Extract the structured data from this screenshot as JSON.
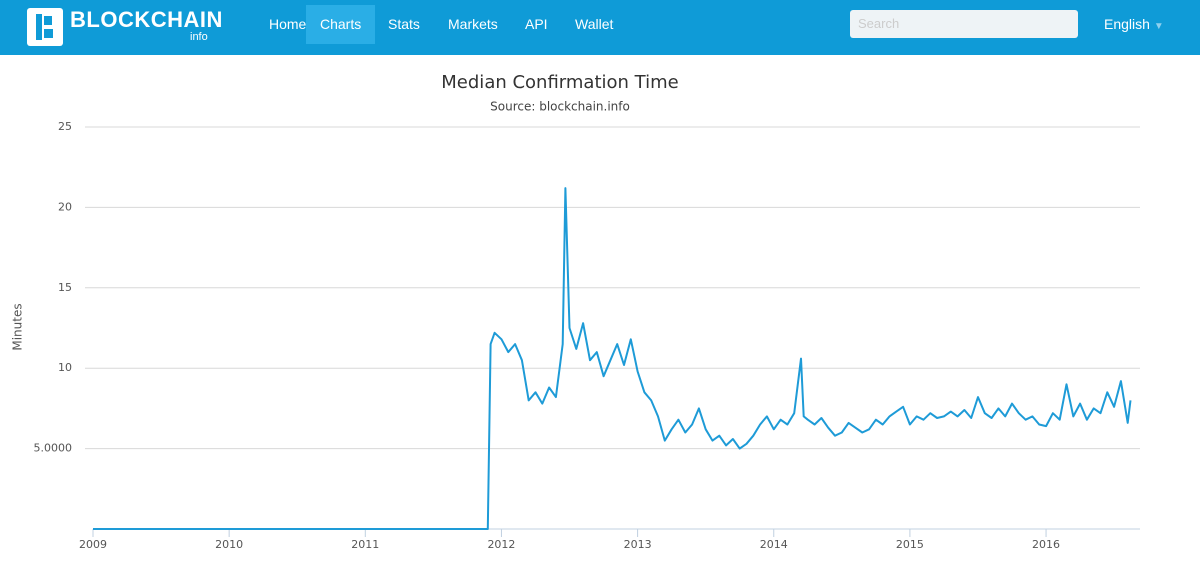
{
  "nav": {
    "brand": "BLOCKCHAIN",
    "brand_sub": "info",
    "links": [
      "Home",
      "Charts",
      "Stats",
      "Markets",
      "API",
      "Wallet"
    ],
    "active": 1,
    "search_placeholder": "Search",
    "language": "English"
  },
  "chart_data": {
    "type": "line",
    "title": "Median Confirmation Time",
    "subtitle": "Source: blockchain.info",
    "y_label": "Minutes",
    "color": "#1e9bd7",
    "grid": true,
    "x": [
      2009,
      2011.9,
      2011.92,
      2011.95,
      2012.0,
      2012.05,
      2012.1,
      2012.15,
      2012.2,
      2012.25,
      2012.3,
      2012.35,
      2012.4,
      2012.45,
      2012.47,
      2012.5,
      2012.55,
      2012.6,
      2012.65,
      2012.7,
      2012.75,
      2012.8,
      2012.85,
      2012.9,
      2012.95,
      2013.0,
      2013.05,
      2013.1,
      2013.15,
      2013.2,
      2013.25,
      2013.3,
      2013.35,
      2013.4,
      2013.45,
      2013.5,
      2013.55,
      2013.6,
      2013.65,
      2013.7,
      2013.75,
      2013.8,
      2013.85,
      2013.9,
      2013.95,
      2014.0,
      2014.05,
      2014.1,
      2014.15,
      2014.2,
      2014.22,
      2014.25,
      2014.3,
      2014.35,
      2014.4,
      2014.45,
      2014.5,
      2014.55,
      2014.6,
      2014.65,
      2014.7,
      2014.75,
      2014.8,
      2014.85,
      2014.9,
      2014.95,
      2015.0,
      2015.05,
      2015.1,
      2015.15,
      2015.2,
      2015.25,
      2015.3,
      2015.35,
      2015.4,
      2015.45,
      2015.5,
      2015.55,
      2015.6,
      2015.65,
      2015.7,
      2015.75,
      2015.8,
      2015.85,
      2015.9,
      2015.95,
      2016.0,
      2016.05,
      2016.1,
      2016.15,
      2016.2,
      2016.25,
      2016.3,
      2016.35,
      2016.4,
      2016.45,
      2016.5,
      2016.55,
      2016.6,
      2016.62
    ],
    "values": [
      0,
      0,
      11.5,
      12.2,
      11.8,
      11.0,
      11.5,
      10.5,
      8.0,
      8.5,
      7.8,
      8.8,
      8.2,
      11.5,
      21.2,
      12.5,
      11.2,
      12.8,
      10.5,
      11.0,
      9.5,
      10.5,
      11.5,
      10.2,
      11.8,
      9.8,
      8.5,
      8.0,
      7.0,
      5.5,
      6.2,
      6.8,
      6.0,
      6.5,
      7.5,
      6.2,
      5.5,
      5.8,
      5.2,
      5.6,
      5.0,
      5.3,
      5.8,
      6.5,
      7.0,
      6.2,
      6.8,
      6.5,
      7.2,
      10.6,
      7.0,
      6.8,
      6.5,
      6.9,
      6.3,
      5.8,
      6.0,
      6.6,
      6.3,
      6.0,
      6.2,
      6.8,
      6.5,
      7.0,
      7.3,
      7.6,
      6.5,
      7.0,
      6.8,
      7.2,
      6.9,
      7.0,
      7.3,
      7.0,
      7.4,
      6.9,
      8.2,
      7.2,
      6.9,
      7.5,
      7.0,
      7.8,
      7.2,
      6.8,
      7.0,
      6.5,
      6.4,
      7.2,
      6.8,
      9.0,
      7.0,
      7.8,
      6.8,
      7.5,
      7.2,
      8.5,
      7.6,
      9.2,
      6.6,
      8.0
    ],
    "xlim": [
      2009,
      2016.69
    ],
    "xticks": [
      2009,
      2010,
      2011,
      2012,
      2013,
      2014,
      2015,
      2016
    ],
    "ylim": [
      0,
      25
    ],
    "yticks": [
      {
        "value": 5,
        "label": "5.0000"
      },
      10,
      15,
      20,
      25
    ]
  }
}
